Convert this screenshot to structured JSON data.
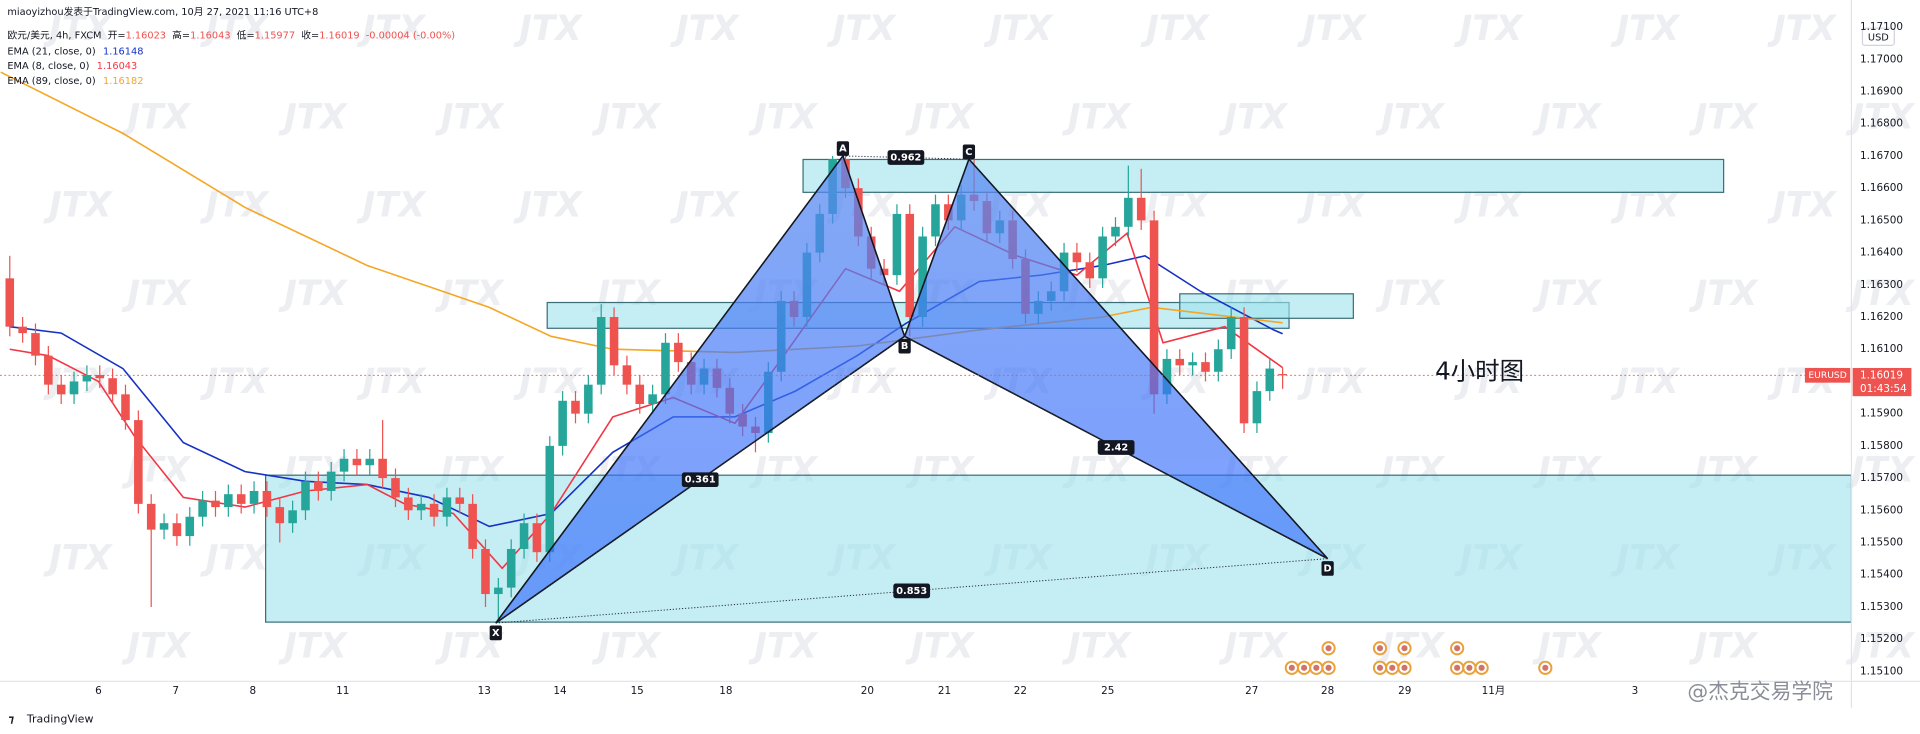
{
  "chart_data": {
    "type": "candlestick",
    "title": "miaoyizhou发表于TradingView.com, 10月 27, 2021 11:16 UTC+8",
    "symbol": "欧元/美元, 4h, FXCM",
    "ohlc_legend": [
      {
        "label": "开=",
        "value": "1.16023"
      },
      {
        "label": "高=",
        "value": "1.16043"
      },
      {
        "label": "低=",
        "value": "1.15977"
      },
      {
        "label": "收=",
        "value": "1.16019"
      }
    ],
    "change": "-0.00004 (-0.00%)",
    "up_color": "#26a69a",
    "down_color": "#ef5350",
    "open": [
      1.1632,
      1.1617,
      1.1615,
      1.1608,
      1.1599,
      1.1596,
      1.16,
      1.1602,
      1.1601,
      1.1596,
      1.1588,
      1.1562,
      1.1554,
      1.1556,
      1.1552,
      1.1558,
      1.1563,
      1.1561,
      1.1565,
      1.1562,
      1.1566,
      1.1561,
      1.1556,
      1.156,
      1.1569,
      1.1566,
      1.1572,
      1.1576,
      1.1574,
      1.1576,
      1.157,
      1.1564,
      1.156,
      1.1562,
      1.1558,
      1.1564,
      1.1562,
      1.1548,
      1.1534,
      1.1536,
      1.1548,
      1.1556,
      1.1547,
      1.158,
      1.1594,
      1.159,
      1.1599,
      1.162,
      1.1605,
      1.1599,
      1.1593,
      1.1596,
      1.1612,
      1.1606,
      1.1599,
      1.1604,
      1.1598,
      1.159,
      1.1586,
      1.1584,
      1.1603,
      1.1625,
      1.162,
      1.164,
      1.1652,
      1.1669,
      1.166,
      1.1645,
      1.1635,
      1.1633,
      1.1652,
      1.162,
      1.1645,
      1.1655,
      1.165,
      1.1658,
      1.1656,
      1.1646,
      1.165,
      1.1638,
      1.1621,
      1.1625,
      1.1628,
      1.164,
      1.1637,
      1.1632,
      1.1645,
      1.1648,
      1.1657,
      1.165,
      1.1596,
      1.1607,
      1.1605,
      1.1606,
      1.1603,
      1.161,
      1.162,
      1.1587,
      1.1597,
      1.16023
    ],
    "high": [
      1.1639,
      1.162,
      1.1618,
      1.1611,
      1.1602,
      1.1603,
      1.1605,
      1.1605,
      1.1604,
      1.1599,
      1.1591,
      1.1565,
      1.1559,
      1.1559,
      1.1561,
      1.1566,
      1.1566,
      1.1568,
      1.1568,
      1.1569,
      1.1569,
      1.1564,
      1.1563,
      1.1572,
      1.1572,
      1.1575,
      1.1579,
      1.1579,
      1.1579,
      1.1588,
      1.1573,
      1.1567,
      1.1565,
      1.1565,
      1.1567,
      1.1567,
      1.1565,
      1.1551,
      1.1539,
      1.1551,
      1.1559,
      1.1559,
      1.1583,
      1.1597,
      1.1597,
      1.1602,
      1.1624,
      1.1623,
      1.1608,
      1.1602,
      1.1599,
      1.1615,
      1.1615,
      1.1609,
      1.1607,
      1.1607,
      1.1601,
      1.1593,
      1.1589,
      1.1606,
      1.1628,
      1.1628,
      1.1643,
      1.1655,
      1.167,
      1.1671,
      1.1663,
      1.1648,
      1.1638,
      1.1655,
      1.1655,
      1.1648,
      1.1658,
      1.1658,
      1.1661,
      1.1669,
      1.1659,
      1.1653,
      1.1653,
      1.1641,
      1.1628,
      1.1631,
      1.1643,
      1.1643,
      1.164,
      1.1648,
      1.1651,
      1.1667,
      1.1666,
      1.1653,
      1.161,
      1.161,
      1.1609,
      1.1609,
      1.1613,
      1.1623,
      1.1623,
      1.16,
      1.1607,
      1.16043
    ],
    "low": [
      1.1614,
      1.1612,
      1.1605,
      1.1596,
      1.1593,
      1.1593,
      1.1597,
      1.1598,
      1.1593,
      1.1585,
      1.1559,
      1.153,
      1.1551,
      1.1549,
      1.1549,
      1.1555,
      1.1558,
      1.1558,
      1.1559,
      1.1559,
      1.1558,
      1.155,
      1.1553,
      1.1557,
      1.1563,
      1.1563,
      1.1569,
      1.1571,
      1.1571,
      1.1567,
      1.1561,
      1.1557,
      1.1557,
      1.1555,
      1.1555,
      1.1559,
      1.1545,
      1.153,
      1.1525,
      1.1533,
      1.1545,
      1.1544,
      1.1544,
      1.1577,
      1.1587,
      1.1587,
      1.1596,
      1.1602,
      1.1596,
      1.159,
      1.159,
      1.1593,
      1.1603,
      1.1596,
      1.1596,
      1.1595,
      1.1587,
      1.1583,
      1.1578,
      1.1581,
      1.16,
      1.1617,
      1.1617,
      1.1637,
      1.1649,
      1.1657,
      1.1642,
      1.1632,
      1.163,
      1.163,
      1.1614,
      1.1617,
      1.1642,
      1.1647,
      1.1647,
      1.1653,
      1.1643,
      1.1643,
      1.1635,
      1.1618,
      1.1618,
      1.1622,
      1.1625,
      1.1634,
      1.1629,
      1.1629,
      1.1642,
      1.1645,
      1.1647,
      1.159,
      1.1593,
      1.1602,
      1.1602,
      1.16,
      1.16,
      1.1607,
      1.1584,
      1.1584,
      1.1594,
      1.15977
    ],
    "close": [
      1.1617,
      1.1615,
      1.1608,
      1.1599,
      1.1596,
      1.16,
      1.1602,
      1.1601,
      1.1596,
      1.1588,
      1.1562,
      1.1554,
      1.1556,
      1.1552,
      1.1558,
      1.1563,
      1.1561,
      1.1565,
      1.1562,
      1.1566,
      1.1561,
      1.1556,
      1.156,
      1.1569,
      1.1566,
      1.1572,
      1.1576,
      1.1574,
      1.1576,
      1.157,
      1.1564,
      1.156,
      1.1562,
      1.1558,
      1.1564,
      1.1562,
      1.1548,
      1.1534,
      1.1536,
      1.1548,
      1.1556,
      1.1547,
      1.158,
      1.1594,
      1.159,
      1.1599,
      1.162,
      1.1605,
      1.1599,
      1.1593,
      1.1596,
      1.1612,
      1.1606,
      1.1599,
      1.1604,
      1.1598,
      1.159,
      1.1586,
      1.1584,
      1.1603,
      1.1625,
      1.162,
      1.164,
      1.1652,
      1.1669,
      1.166,
      1.1645,
      1.1635,
      1.1633,
      1.1652,
      1.162,
      1.1645,
      1.1655,
      1.165,
      1.1658,
      1.1656,
      1.1646,
      1.165,
      1.1638,
      1.1621,
      1.1625,
      1.1628,
      1.164,
      1.1637,
      1.1632,
      1.1645,
      1.1648,
      1.1657,
      1.165,
      1.1596,
      1.1607,
      1.1605,
      1.1606,
      1.1603,
      1.161,
      1.162,
      1.1587,
      1.1597,
      1.1604,
      1.16019
    ],
    "series": [
      {
        "name": "EMA (21, close, 0)",
        "value_label": "1.16148",
        "color": "#1631c4",
        "x": [
          0,
          4,
          8.8,
          13.5,
          18.3,
          23,
          27.8,
          32.6,
          37.3,
          42.1,
          46.9,
          51.6,
          56.4,
          61.1,
          65.9,
          69.7,
          75.4,
          80.2,
          85,
          88.3,
          92.6,
          98.3,
          99
        ],
        "values": [
          1.1617,
          1.1615,
          1.1604,
          1.1581,
          1.1572,
          1.1569,
          1.1568,
          1.1564,
          1.1555,
          1.1559,
          1.1578,
          1.1589,
          1.1589,
          1.1597,
          1.1608,
          1.1618,
          1.1631,
          1.1633,
          1.1636,
          1.1639,
          1.1628,
          1.1616,
          1.16148
        ]
      },
      {
        "name": "EMA (8, close, 0)",
        "value_label": "1.16043",
        "color": "#f23645",
        "x": [
          0,
          3,
          6.9,
          9.7,
          13.5,
          18.3,
          23,
          27.8,
          30.7,
          34.5,
          38.3,
          42.1,
          46.9,
          51.6,
          56.4,
          60.2,
          65,
          69.2,
          73.5,
          78.3,
          83,
          86.9,
          89.7,
          94.5,
          99
        ],
        "values": [
          1.161,
          1.1608,
          1.16,
          1.1583,
          1.1564,
          1.1561,
          1.1566,
          1.1568,
          1.1562,
          1.1559,
          1.1542,
          1.1559,
          1.1589,
          1.1595,
          1.1587,
          1.1608,
          1.1635,
          1.1628,
          1.1648,
          1.1639,
          1.1633,
          1.1646,
          1.1612,
          1.1617,
          1.16043
        ]
      },
      {
        "name": "EMA (89, close, 0)",
        "value_label": "1.16182",
        "color": "#f5a623",
        "x": [
          -0.7,
          8.8,
          18.3,
          27.8,
          37.3,
          42.1,
          46.9,
          56.4,
          65.9,
          75.4,
          85,
          88.8,
          99
        ],
        "values": [
          1.1696,
          1.1677,
          1.1654,
          1.1636,
          1.1623,
          1.1614,
          1.161,
          1.1609,
          1.1611,
          1.1616,
          1.162,
          1.1623,
          1.16182
        ]
      }
    ],
    "xlim": [
      -0.76,
      143.24
    ],
    "xticks": [
      {
        "value": 6.9,
        "label": "6"
      },
      {
        "value": 12.9,
        "label": "7"
      },
      {
        "value": 18.9,
        "label": "8"
      },
      {
        "value": 25.9,
        "label": "11"
      },
      {
        "value": 36.9,
        "label": "13"
      },
      {
        "value": 42.8,
        "label": "14"
      },
      {
        "value": 48.8,
        "label": "15"
      },
      {
        "value": 55.7,
        "label": "18"
      },
      {
        "value": 66.7,
        "label": "20"
      },
      {
        "value": 72.7,
        "label": "21"
      },
      {
        "value": 78.6,
        "label": "22"
      },
      {
        "value": 85.4,
        "label": "25"
      },
      {
        "value": 96.6,
        "label": "27"
      },
      {
        "value": 102.5,
        "label": "28"
      },
      {
        "value": 108.5,
        "label": "29"
      },
      {
        "value": 115.4,
        "label": "11月"
      },
      {
        "value": 126.4,
        "label": "3"
      }
    ],
    "ylim": [
      1.15054,
      1.17184
    ],
    "yticks": [
      {
        "value": 1.151,
        "label": "1.15100"
      },
      {
        "value": 1.152,
        "label": "1.15200"
      },
      {
        "value": 1.153,
        "label": "1.15300"
      },
      {
        "value": 1.154,
        "label": "1.15400"
      },
      {
        "value": 1.155,
        "label": "1.15500"
      },
      {
        "value": 1.156,
        "label": "1.15600"
      },
      {
        "value": 1.157,
        "label": "1.15700"
      },
      {
        "value": 1.158,
        "label": "1.15800"
      },
      {
        "value": 1.159,
        "label": "1.15900"
      },
      {
        "value": 1.16,
        "label": "1.16000"
      },
      {
        "value": 1.161,
        "label": "1.16100"
      },
      {
        "value": 1.162,
        "label": "1.16200"
      },
      {
        "value": 1.163,
        "label": "1.16300"
      },
      {
        "value": 1.164,
        "label": "1.16400"
      },
      {
        "value": 1.165,
        "label": "1.16500"
      },
      {
        "value": 1.166,
        "label": "1.16600"
      },
      {
        "value": 1.167,
        "label": "1.16700"
      },
      {
        "value": 1.168,
        "label": "1.16800"
      },
      {
        "value": 1.169,
        "label": "1.16900"
      },
      {
        "value": 1.17,
        "label": "1.17000"
      },
      {
        "value": 1.171,
        "label": "1.17100"
      }
    ],
    "currency": "USD",
    "last_price": 1.16019,
    "symbol_tag": "EURUSD",
    "countdown": "01:43:54",
    "pattern": {
      "points": [
        {
          "label": "X",
          "x": 37.8,
          "y": 1.1525
        },
        {
          "label": "A",
          "x": 64.8,
          "y": 1.167
        },
        {
          "label": "B",
          "x": 69.6,
          "y": 1.1614
        },
        {
          "label": "C",
          "x": 74.6,
          "y": 1.1669
        },
        {
          "label": "D",
          "x": 102.5,
          "y": 1.1545
        }
      ],
      "ratios": [
        0.361,
        0.962,
        2.42,
        0.853
      ]
    },
    "zones": [
      {
        "x": [
          61.7,
          133.3
        ],
        "y": [
          1.16587,
          1.16689
        ]
      },
      {
        "x": [
          41.8,
          99.5
        ],
        "y": [
          1.16165,
          1.16245
        ]
      },
      {
        "x": [
          91.0,
          104.5
        ],
        "y": [
          1.16196,
          1.16272
        ]
      },
      {
        "x": [
          19.9,
          143.24
        ],
        "y": [
          1.15253,
          1.15709
        ]
      }
    ],
    "annotation": "4小时图",
    "watermark": "JTX",
    "footer": {
      "brand": "TradingView",
      "credit": "@杰克交易学院"
    }
  }
}
